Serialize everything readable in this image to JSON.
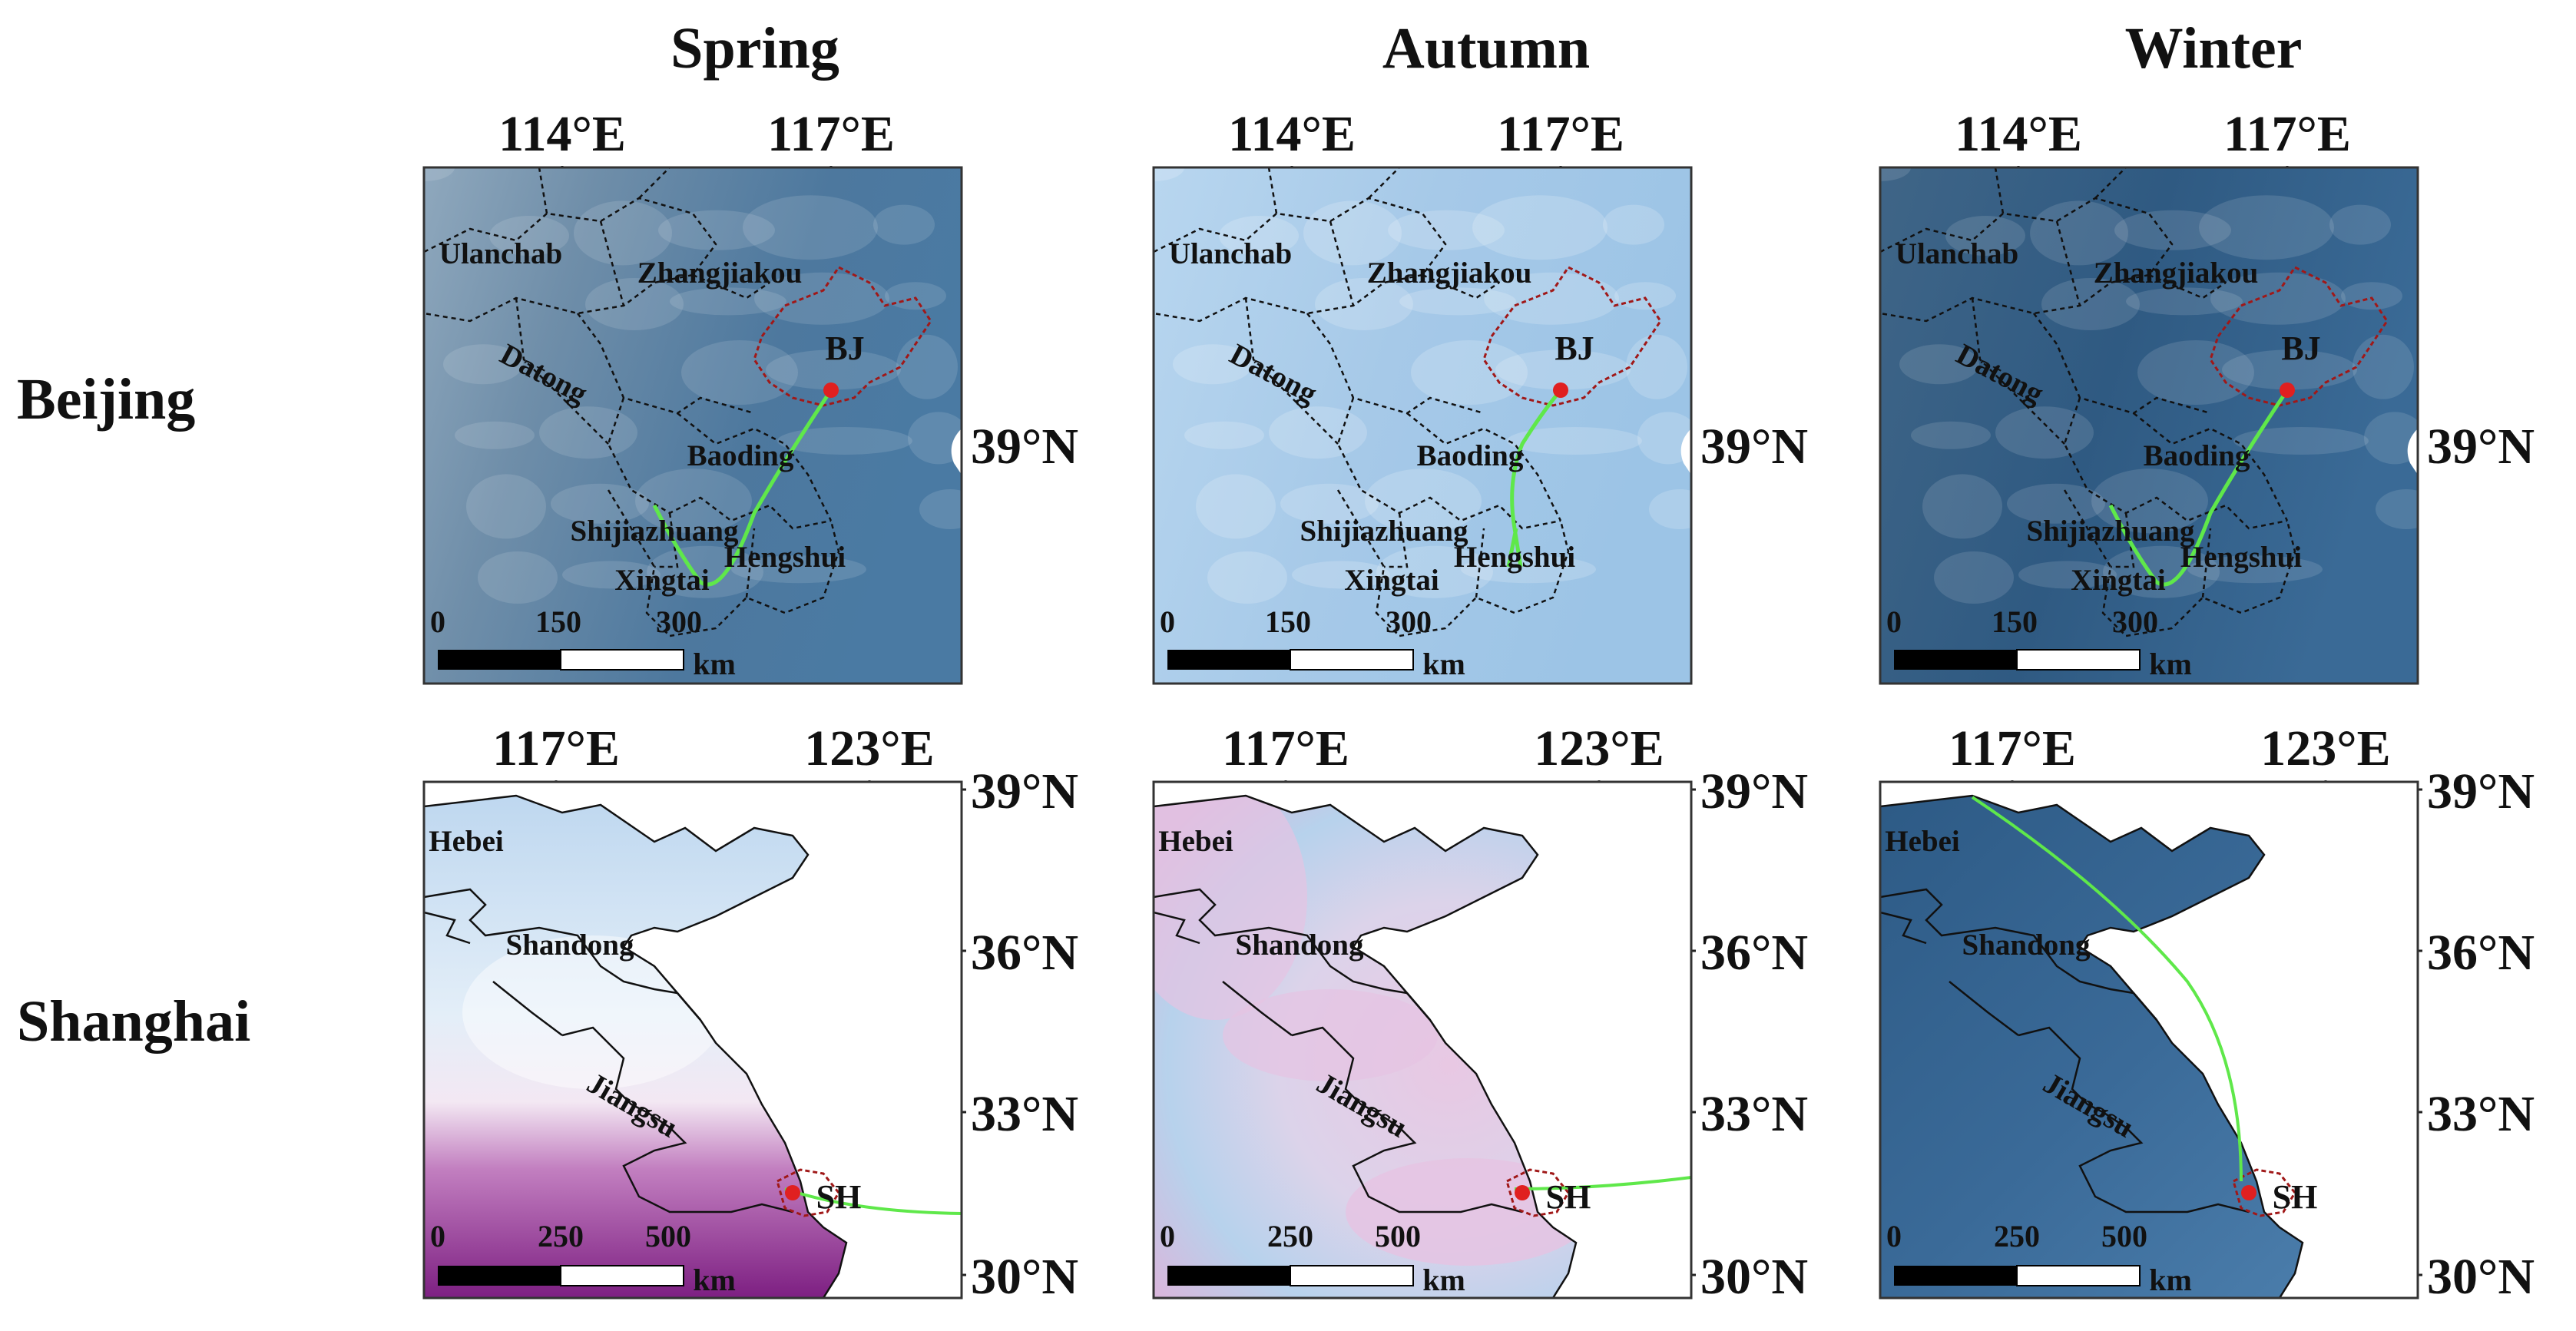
{
  "seasons": [
    "Spring",
    "Autumn",
    "Winter"
  ],
  "cities": [
    "Beijing",
    "Shanghai"
  ],
  "beijing_row": {
    "lon_ticks": [
      "114°E",
      "117°E"
    ],
    "lat_ticks": [
      "39°N"
    ],
    "places": [
      "Ulanchab",
      "Zhangjiakou",
      "Datong",
      "Baoding",
      "Shijiazhuang",
      "Xingtai",
      "Hengshui"
    ],
    "city_label": "BJ",
    "scale": {
      "labels": [
        "0",
        "150",
        "300"
      ],
      "unit": "km"
    }
  },
  "shanghai_row": {
    "lon_ticks": [
      "117°E",
      "123°E"
    ],
    "lat_ticks": [
      "39°N",
      "36°N",
      "33°N",
      "30°N"
    ],
    "places": [
      "Hebei",
      "Shandong",
      "Jiangsu"
    ],
    "city_label": "SH",
    "scale": {
      "labels": [
        "0",
        "250",
        "500"
      ],
      "unit": "km"
    }
  },
  "colors": {
    "trajectory": "#5fe84a",
    "city_marker": "#e02020",
    "city_boundary": "#a01818",
    "beijing_spring_bg": "#4f7a9e",
    "beijing_autumn_bg": "#a9cceb",
    "beijing_winter_bg": "#2f587f",
    "shanghai_spring_bg": "#cfe1f2",
    "shanghai_spring_low": "#8a2d8c",
    "shanghai_autumn_bg": "#c4d9ee",
    "shanghai_autumn_pink": "#e6c3e2",
    "shanghai_winter_bg": "#3a6790"
  }
}
